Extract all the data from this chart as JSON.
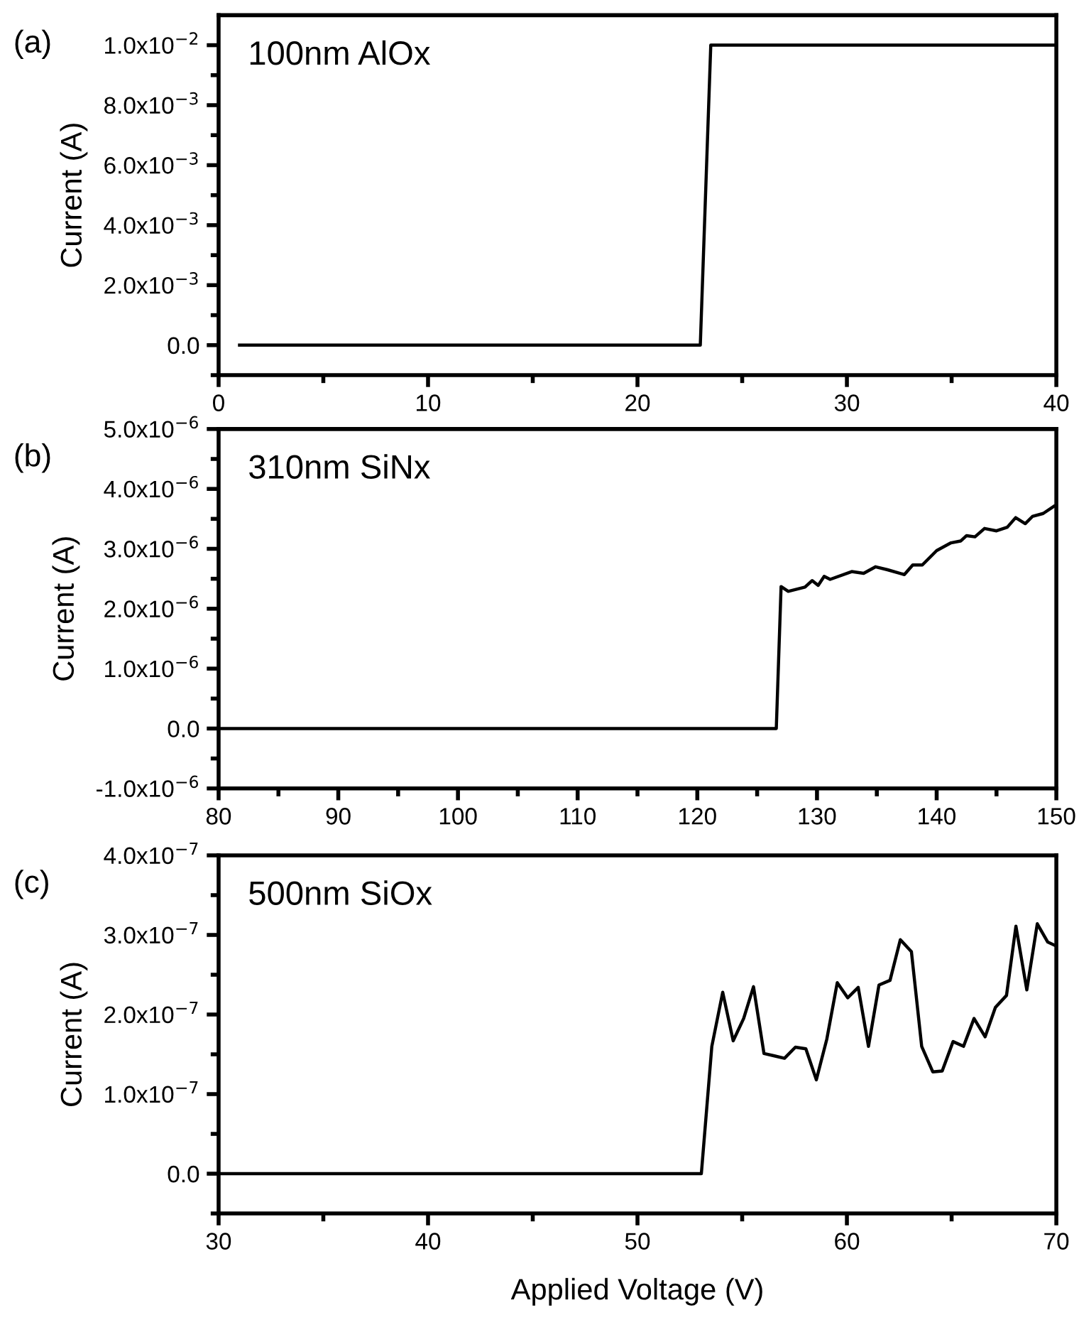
{
  "chart_data": [
    {
      "type": "line",
      "ylabel": "Current (A)",
      "annotations": [
        "(a)",
        "100nm AlOx"
      ],
      "xlim": [
        0,
        40
      ],
      "ylim": [
        -0.001,
        0.011
      ],
      "xticks": [
        0,
        {
          "value": 5,
          "label": null
        },
        10,
        {
          "value": 15,
          "label": null
        },
        20,
        {
          "value": 25,
          "label": null
        },
        30,
        {
          "value": 35,
          "label": null
        },
        40
      ],
      "yticks": [
        {
          "value": -0.001,
          "label": null
        },
        {
          "value": 0,
          "label": "0.0"
        },
        {
          "value": 0.001,
          "label": null
        },
        {
          "value": 0.002,
          "label": "2.0x10$^{−3}$"
        },
        {
          "value": 0.003,
          "label": null
        },
        {
          "value": 0.004,
          "label": "4.0x10$^{−3}$"
        },
        {
          "value": 0.005,
          "label": null
        },
        {
          "value": 0.006,
          "label": "6.0x10$^{−3}$"
        },
        {
          "value": 0.007,
          "label": null
        },
        {
          "value": 0.008,
          "label": "8.0x10$^{−3}$"
        },
        {
          "value": 0.009,
          "label": null
        },
        {
          "value": 0.01,
          "label": "1.0x10$^{−2}$"
        }
      ],
      "grid": false,
      "legend": false,
      "marker": "none",
      "line_style": "solid",
      "series": [
        {
          "color": "#000000",
          "x": [
            1,
            23.0,
            23.5,
            40
          ],
          "values": [
            0,
            0,
            0.01,
            0.01
          ]
        }
      ]
    },
    {
      "type": "line",
      "ylabel": "Current (A)",
      "annotations": [
        "(b)",
        "310nm SiNx"
      ],
      "xlim": [
        80,
        150
      ],
      "ylim": [
        -1e-06,
        5e-06
      ],
      "xticks": [
        80,
        {
          "value": 85,
          "label": null
        },
        90,
        {
          "value": 95,
          "label": null
        },
        100,
        {
          "value": 105,
          "label": null
        },
        110,
        {
          "value": 115,
          "label": null
        },
        120,
        {
          "value": 125,
          "label": null
        },
        130,
        {
          "value": 135,
          "label": null
        },
        140,
        {
          "value": 145,
          "label": null
        },
        150
      ],
      "yticks": [
        {
          "value": -1e-06,
          "label": "-1.0x10$^{−6}$"
        },
        {
          "value": -5e-07,
          "label": null
        },
        {
          "value": 0,
          "label": "0.0"
        },
        {
          "value": 5e-07,
          "label": null
        },
        {
          "value": 1e-06,
          "label": "1.0x10$^{−6}$"
        },
        {
          "value": 1.5e-06,
          "label": null
        },
        {
          "value": 2e-06,
          "label": "2.0x10$^{−6}$"
        },
        {
          "value": 2.5e-06,
          "label": null
        },
        {
          "value": 3e-06,
          "label": "3.0x10$^{−6}$"
        },
        {
          "value": 3.5e-06,
          "label": null
        },
        {
          "value": 4e-06,
          "label": "4.0x10$^{−6}$"
        },
        {
          "value": 4.5e-06,
          "label": null
        },
        {
          "value": 5e-06,
          "label": "5.0x10$^{−6}$"
        }
      ],
      "grid": false,
      "legend": false,
      "marker": "none",
      "line_style": "solid",
      "series": [
        {
          "color": "#000000",
          "x": [
            80,
            126.6,
            127.0,
            127.6,
            129.0,
            129.6,
            130.1,
            130.6,
            131.1,
            132.9,
            133.9,
            134.9,
            135.9,
            137.3,
            138.0,
            138.8,
            140.0,
            141.2,
            142.0,
            142.5,
            143.2,
            144.0,
            145.0,
            145.9,
            146.6,
            147.4,
            148.0,
            148.9,
            149.8
          ],
          "values": [
            0,
            0,
            2.37e-06,
            2.29e-06,
            2.36e-06,
            2.47e-06,
            2.39e-06,
            2.54e-06,
            2.49e-06,
            2.62e-06,
            2.59e-06,
            2.7e-06,
            2.65e-06,
            2.57e-06,
            2.73e-06,
            2.73e-06,
            2.97e-06,
            3.1e-06,
            3.13e-06,
            3.22e-06,
            3.2e-06,
            3.34e-06,
            3.3e-06,
            3.36e-06,
            3.52e-06,
            3.42e-06,
            3.54e-06,
            3.59e-06,
            3.71e-06
          ]
        }
      ]
    },
    {
      "type": "line",
      "xlabel": "Applied Voltage (V)",
      "ylabel": "Current (A)",
      "annotations": [
        "(c)",
        "500nm SiOx"
      ],
      "xlim": [
        30,
        70
      ],
      "ylim": [
        -5e-08,
        4e-07
      ],
      "xticks": [
        30,
        {
          "value": 35,
          "label": null
        },
        40,
        {
          "value": 45,
          "label": null
        },
        50,
        {
          "value": 55,
          "label": null
        },
        60,
        {
          "value": 65,
          "label": null
        },
        70
      ],
      "yticks": [
        {
          "value": -5e-08,
          "label": null
        },
        {
          "value": 0,
          "label": "0.0"
        },
        {
          "value": 5e-08,
          "label": null
        },
        {
          "value": 1e-07,
          "label": "1.0x10$^{−7}$"
        },
        {
          "value": 1.5e-07,
          "label": null
        },
        {
          "value": 2e-07,
          "label": "2.0x10$^{−7}$"
        },
        {
          "value": 2.5e-07,
          "label": null
        },
        {
          "value": 3e-07,
          "label": "3.0x10$^{−7}$"
        },
        {
          "value": 3.5e-07,
          "label": null
        },
        {
          "value": 4e-07,
          "label": "4.0x10$^{−7}$"
        }
      ],
      "grid": false,
      "legend": false,
      "marker": "none",
      "line_style": "solid",
      "series": [
        {
          "color": "#000000",
          "x": [
            30,
            53.05,
            53.55,
            54.07,
            54.57,
            55.07,
            55.54,
            56.04,
            56.54,
            57.02,
            57.54,
            58.04,
            58.54,
            59.04,
            59.54,
            60.04,
            60.54,
            61.03,
            61.53,
            62.06,
            62.55,
            63.08,
            63.57,
            64.1,
            64.55,
            65.07,
            65.57,
            66.07,
            66.6,
            67.09,
            67.62,
            68.07,
            68.59,
            69.09,
            69.59,
            70.0
          ],
          "values": [
            0,
            0,
            1.6e-07,
            2.28e-07,
            1.67e-07,
            1.95e-07,
            2.35e-07,
            1.51e-07,
            1.48e-07,
            1.45e-07,
            1.59e-07,
            1.57e-07,
            1.18e-07,
            1.69e-07,
            2.4e-07,
            2.21e-07,
            2.34e-07,
            1.6e-07,
            2.37e-07,
            2.43e-07,
            2.94e-07,
            2.79e-07,
            1.6e-07,
            1.28e-07,
            1.29e-07,
            1.66e-07,
            1.6e-07,
            1.95e-07,
            1.72e-07,
            2.09e-07,
            2.24e-07,
            3.11e-07,
            2.31e-07,
            3.14e-07,
            2.91e-07,
            2.86e-07
          ]
        }
      ]
    }
  ]
}
